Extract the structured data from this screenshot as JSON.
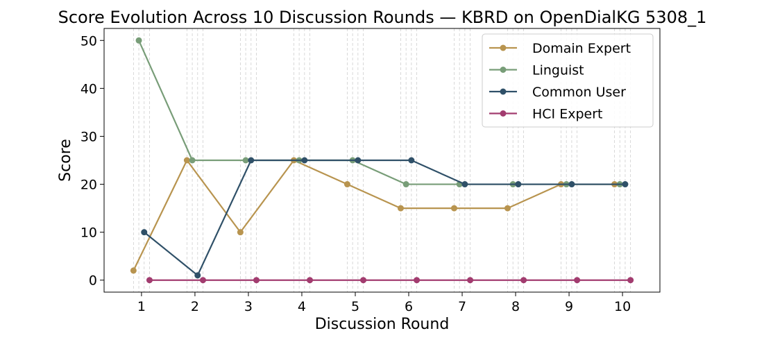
{
  "chart_data": {
    "type": "line",
    "title": "Score Evolution Across 10 Discussion Rounds — KBRD on OpenDialKG 5308_1",
    "xlabel": "Discussion Round",
    "ylabel": "Score",
    "x": [
      1,
      2,
      3,
      4,
      5,
      6,
      7,
      8,
      9,
      10
    ],
    "xlim": [
      0.3,
      10.7
    ],
    "ylim": [
      -2.5,
      52.5
    ],
    "yticks": [
      0,
      10,
      20,
      30,
      40,
      50
    ],
    "grid": "vertical dashed",
    "legend_position": "top-right",
    "series": [
      {
        "name": "Domain Expert",
        "color": "#b8944f",
        "values": [
          2,
          25,
          10,
          25,
          20,
          15,
          15,
          15,
          20,
          20
        ]
      },
      {
        "name": "Linguist",
        "color": "#789d78",
        "values": [
          50,
          25,
          25,
          25,
          25,
          20,
          20,
          20,
          20,
          20
        ]
      },
      {
        "name": "Common User",
        "color": "#2f5068",
        "values": [
          10,
          1,
          25,
          25,
          25,
          25,
          20,
          20,
          20,
          20
        ]
      },
      {
        "name": "HCI Expert",
        "color": "#a23c6f",
        "values": [
          0,
          0,
          0,
          0,
          0,
          0,
          0,
          0,
          0,
          0
        ]
      }
    ]
  }
}
